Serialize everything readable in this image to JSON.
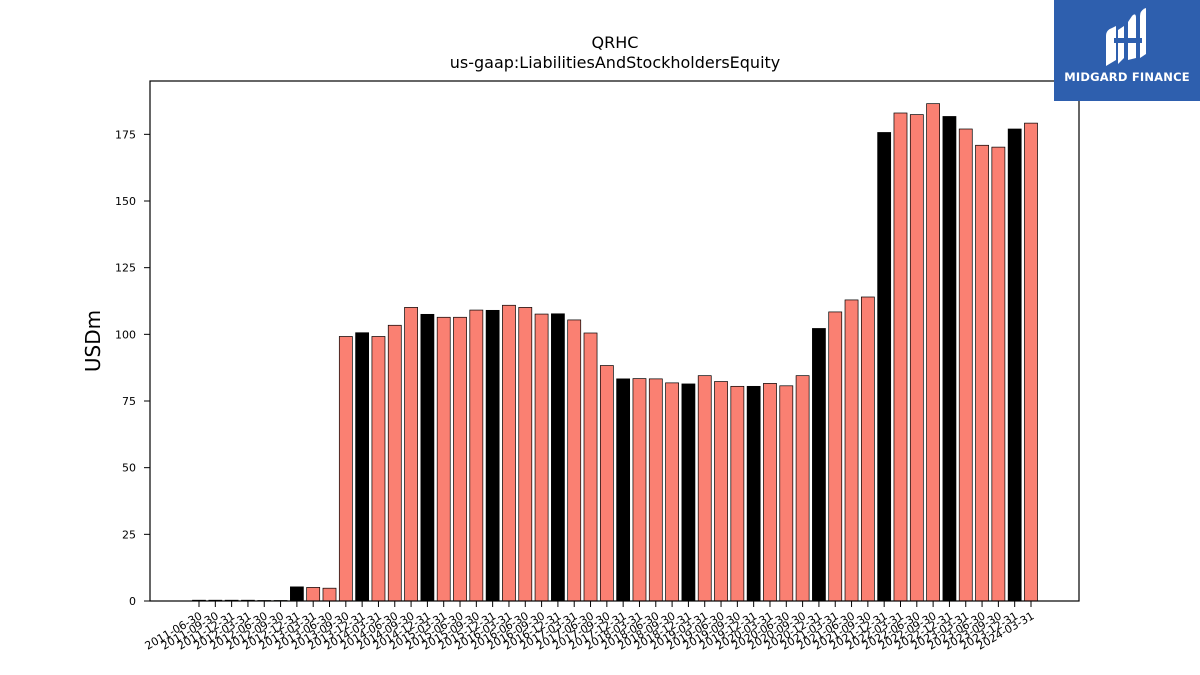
{
  "chart_data": {
    "type": "bar",
    "title": "QRHC",
    "subtitle": "us-gaap:LiabilitiesAndStockholdersEquity",
    "ylabel": "USDm",
    "xlabel": "",
    "ylim": [
      0,
      195
    ],
    "yticks": [
      0,
      25,
      50,
      75,
      100,
      125,
      150,
      175
    ],
    "grid": false,
    "colors": {
      "default": "#fa8072",
      "highlight": "#000000",
      "edge": "#000000"
    },
    "categories": [
      "2011-06-30",
      "2011-09-30",
      "2011-12-31",
      "2012-03-31",
      "2012-06-30",
      "2012-09-30",
      "2012-12-31",
      "2013-03-31",
      "2013-06-30",
      "2013-09-30",
      "2013-12-31",
      "2014-03-31",
      "2014-06-30",
      "2014-09-30",
      "2014-12-31",
      "2015-03-31",
      "2015-06-30",
      "2015-09-30",
      "2015-12-31",
      "2016-03-31",
      "2016-06-30",
      "2016-09-30",
      "2016-12-31",
      "2017-03-31",
      "2017-06-30",
      "2017-09-30",
      "2017-12-31",
      "2018-03-31",
      "2018-06-30",
      "2018-09-30",
      "2018-12-31",
      "2019-03-31",
      "2019-06-30",
      "2019-09-30",
      "2019-12-31",
      "2020-03-31",
      "2020-06-30",
      "2020-09-30",
      "2020-12-31",
      "2021-03-31",
      "2021-06-30",
      "2021-09-30",
      "2021-12-31",
      "2022-03-31",
      "2022-06-30",
      "2022-09-30",
      "2022-12-31",
      "2023-03-31",
      "2023-06-30",
      "2023-09-30",
      "2023-12-31",
      "2024-03-31"
    ],
    "values": [
      0.3,
      0.3,
      0.3,
      0.3,
      0.2,
      0.2,
      5.3,
      5.1,
      4.8,
      99.2,
      100.6,
      99.2,
      103.4,
      110.1,
      107.5,
      106.4,
      106.4,
      109.1,
      109.0,
      110.9,
      110.1,
      107.6,
      107.7,
      105.4,
      100.5,
      88.3,
      83.3,
      83.4,
      83.3,
      81.8,
      81.4,
      84.5,
      82.3,
      80.5,
      80.5,
      81.6,
      80.7,
      84.5,
      102.2,
      108.4,
      112.9,
      114.0,
      175.7,
      183.0,
      182.4,
      186.5,
      181.7,
      177.0,
      170.9,
      170.2,
      177.0,
      179.2
    ],
    "highlight": [
      false,
      false,
      false,
      false,
      false,
      false,
      true,
      false,
      false,
      false,
      true,
      false,
      false,
      false,
      true,
      false,
      false,
      false,
      true,
      false,
      false,
      false,
      true,
      false,
      false,
      false,
      true,
      false,
      false,
      false,
      true,
      false,
      false,
      false,
      true,
      false,
      false,
      false,
      true,
      false,
      false,
      false,
      true,
      false,
      false,
      false,
      true,
      false,
      false,
      false,
      true,
      false
    ]
  },
  "logo": {
    "text": "MIDGARD FINANCE",
    "icon": "midgard-finance-logo-icon"
  }
}
